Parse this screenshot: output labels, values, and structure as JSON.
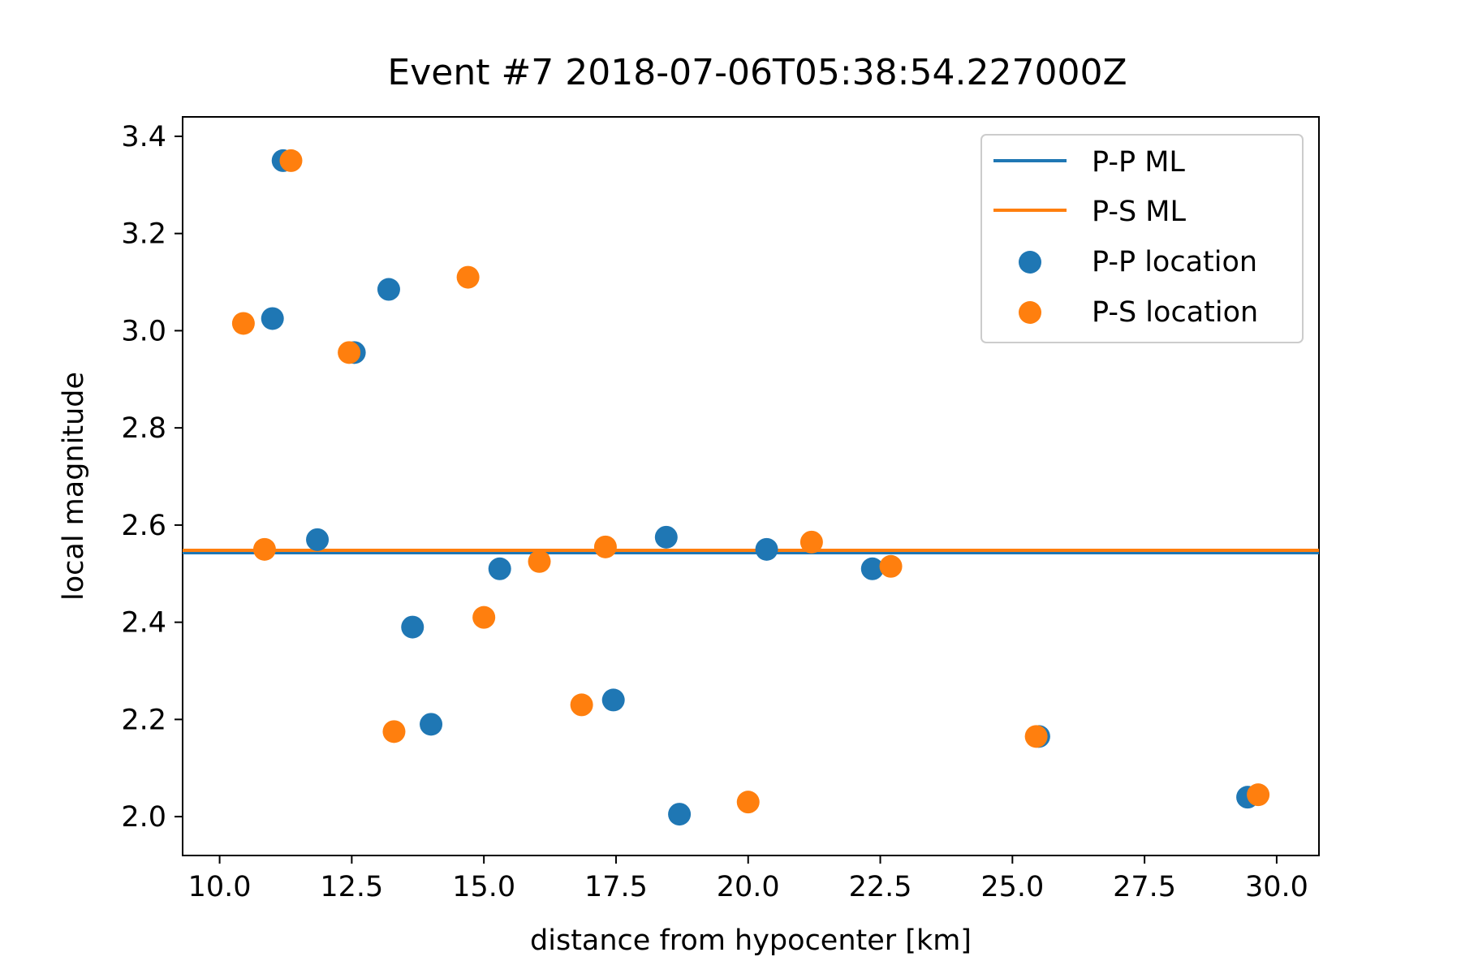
{
  "chart_data": {
    "type": "scatter",
    "title": "Event #7    2018-07-06T05:38:54.227000Z",
    "xlabel": "distance from hypocenter [km]",
    "ylabel": "local magnitude",
    "xlim": [
      9.3,
      30.8
    ],
    "ylim": [
      1.92,
      3.44
    ],
    "xticks": [
      "10.0",
      "12.5",
      "15.0",
      "17.5",
      "20.0",
      "22.5",
      "25.0",
      "27.5",
      "30.0"
    ],
    "yticks": [
      "2.0",
      "2.2",
      "2.4",
      "2.6",
      "2.8",
      "3.0",
      "3.2",
      "3.4"
    ],
    "grid": false,
    "legend_position": "top-right",
    "lines": [
      {
        "name": "P-P ML",
        "y": 2.543,
        "color": "#1f77b4"
      },
      {
        "name": "P-S ML",
        "y": 2.548,
        "color": "#ff7f0e"
      }
    ],
    "series": [
      {
        "name": "P-P location",
        "color": "#1f77b4",
        "points": [
          [
            11.2,
            3.35
          ],
          [
            11.0,
            3.025
          ],
          [
            12.55,
            2.955
          ],
          [
            13.2,
            3.085
          ],
          [
            11.85,
            2.57
          ],
          [
            13.65,
            2.39
          ],
          [
            14.0,
            2.19
          ],
          [
            15.3,
            2.51
          ],
          [
            17.45,
            2.24
          ],
          [
            18.45,
            2.575
          ],
          [
            18.7,
            2.005
          ],
          [
            20.35,
            2.55
          ],
          [
            22.35,
            2.51
          ],
          [
            25.5,
            2.165
          ],
          [
            29.45,
            2.04
          ]
        ]
      },
      {
        "name": "P-S location",
        "color": "#ff7f0e",
        "points": [
          [
            11.35,
            3.35
          ],
          [
            10.45,
            3.015
          ],
          [
            12.45,
            2.955
          ],
          [
            14.7,
            3.11
          ],
          [
            10.85,
            2.55
          ],
          [
            13.3,
            2.175
          ],
          [
            15.0,
            2.41
          ],
          [
            16.05,
            2.525
          ],
          [
            16.85,
            2.23
          ],
          [
            17.3,
            2.555
          ],
          [
            20.0,
            2.03
          ],
          [
            21.2,
            2.565
          ],
          [
            22.7,
            2.515
          ],
          [
            25.45,
            2.165
          ],
          [
            29.65,
            2.045
          ]
        ]
      }
    ]
  }
}
